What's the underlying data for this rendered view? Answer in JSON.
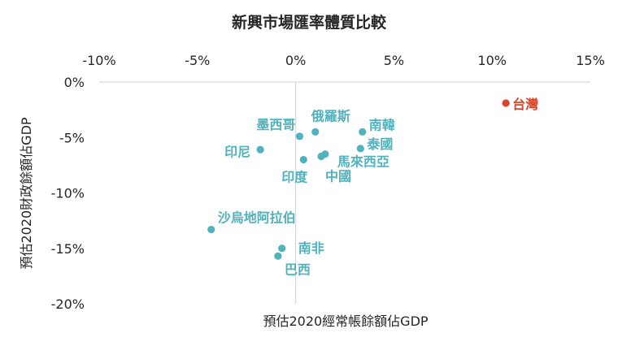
{
  "chart_data": {
    "type": "scatter",
    "title": "新興市場匯率體質比較",
    "xlabel": "預估2020經常帳餘額佔GDP",
    "ylabel": "預估2020財政餘額佔GDP",
    "xlim": [
      -10,
      15
    ],
    "ylim": [
      -20,
      0
    ],
    "xticks": [
      -10,
      -5,
      0,
      5,
      10,
      15
    ],
    "yticks": [
      0,
      -5,
      -10,
      -15,
      -20
    ],
    "xtick_labels": [
      "-10%",
      "-5%",
      "0%",
      "5%",
      "10%",
      "15%"
    ],
    "ytick_labels": [
      "0%",
      "-5%",
      "-10%",
      "-15%",
      "-20%"
    ],
    "x_axis_position": "top",
    "grid": false,
    "colors": {
      "default": "#4fb2bd",
      "highlight": "#d9452a",
      "axis": "#d9d9d9",
      "text": "#262626"
    },
    "points": [
      {
        "label": "台灣",
        "x": 10.7,
        "y": -1.9,
        "highlight": true
      },
      {
        "label": "墨西哥",
        "x": 0.2,
        "y": -4.9
      },
      {
        "label": "俄羅斯",
        "x": 1.0,
        "y": -4.5
      },
      {
        "label": "南韓",
        "x": 3.4,
        "y": -4.5
      },
      {
        "label": "泰國",
        "x": 3.3,
        "y": -6.0
      },
      {
        "label": "印尼",
        "x": -1.8,
        "y": -6.1
      },
      {
        "label": "印度",
        "x": 0.4,
        "y": -7.0
      },
      {
        "label": "馬來西亞",
        "x": 1.5,
        "y": -6.5
      },
      {
        "label": "中國",
        "x": 1.3,
        "y": -6.7
      },
      {
        "label": "沙烏地阿拉伯",
        "x": -4.3,
        "y": -13.3
      },
      {
        "label": "南非",
        "x": -0.7,
        "y": -15.0
      },
      {
        "label": "巴西",
        "x": -0.9,
        "y": -15.7
      }
    ]
  }
}
